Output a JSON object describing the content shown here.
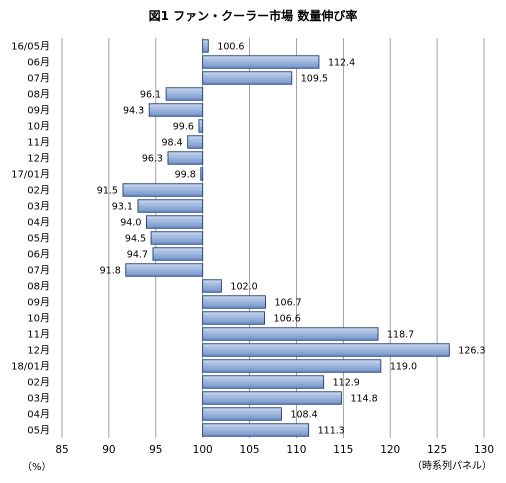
{
  "chart_data": {
    "type": "bar",
    "orientation": "horizontal",
    "title": "図1 ファン・クーラー市場 数量伸び率",
    "categories": [
      "16/05月",
      "06月",
      "07月",
      "08月",
      "09月",
      "10月",
      "11月",
      "12月",
      "17/01月",
      "02月",
      "03月",
      "04月",
      "05月",
      "06月",
      "07月",
      "08月",
      "09月",
      "10月",
      "11月",
      "12月",
      "18/01月",
      "02月",
      "03月",
      "04月",
      "05月"
    ],
    "values": [
      100.6,
      112.4,
      109.5,
      96.1,
      94.3,
      99.6,
      98.4,
      96.3,
      99.8,
      91.5,
      93.1,
      94.0,
      94.5,
      94.7,
      91.8,
      102.0,
      106.7,
      106.6,
      118.7,
      126.3,
      119.0,
      112.9,
      114.8,
      108.4,
      111.3
    ],
    "value_labels": [
      "100.6",
      "112.4",
      "109.5",
      "96.1",
      "94.3",
      "99.6",
      "98.4",
      "96.3",
      "99.8",
      "91.5",
      "93.1",
      "94.0",
      "94.5",
      "94.7",
      "91.8",
      "102.0",
      "106.7",
      "106.6",
      "118.7",
      "126.3",
      "119.0",
      "112.9",
      "114.8",
      "108.4",
      "111.3"
    ],
    "baseline": 100,
    "xlim": [
      85,
      130
    ],
    "xticks": [
      85,
      90,
      95,
      100,
      105,
      110,
      115,
      120,
      125,
      130
    ],
    "xtick_labels": [
      "85",
      "90",
      "95",
      "100",
      "105",
      "110",
      "115",
      "120",
      "125",
      "130"
    ],
    "grid": "vertical",
    "unit_left": "（%）",
    "unit_right": "（時系列パネル）",
    "colors": {
      "bar_top": "#c9d8ef",
      "bar_bottom": "#6f92c8",
      "bar_stroke": "#1f3f7a",
      "grid": "#8c8c8c"
    }
  }
}
